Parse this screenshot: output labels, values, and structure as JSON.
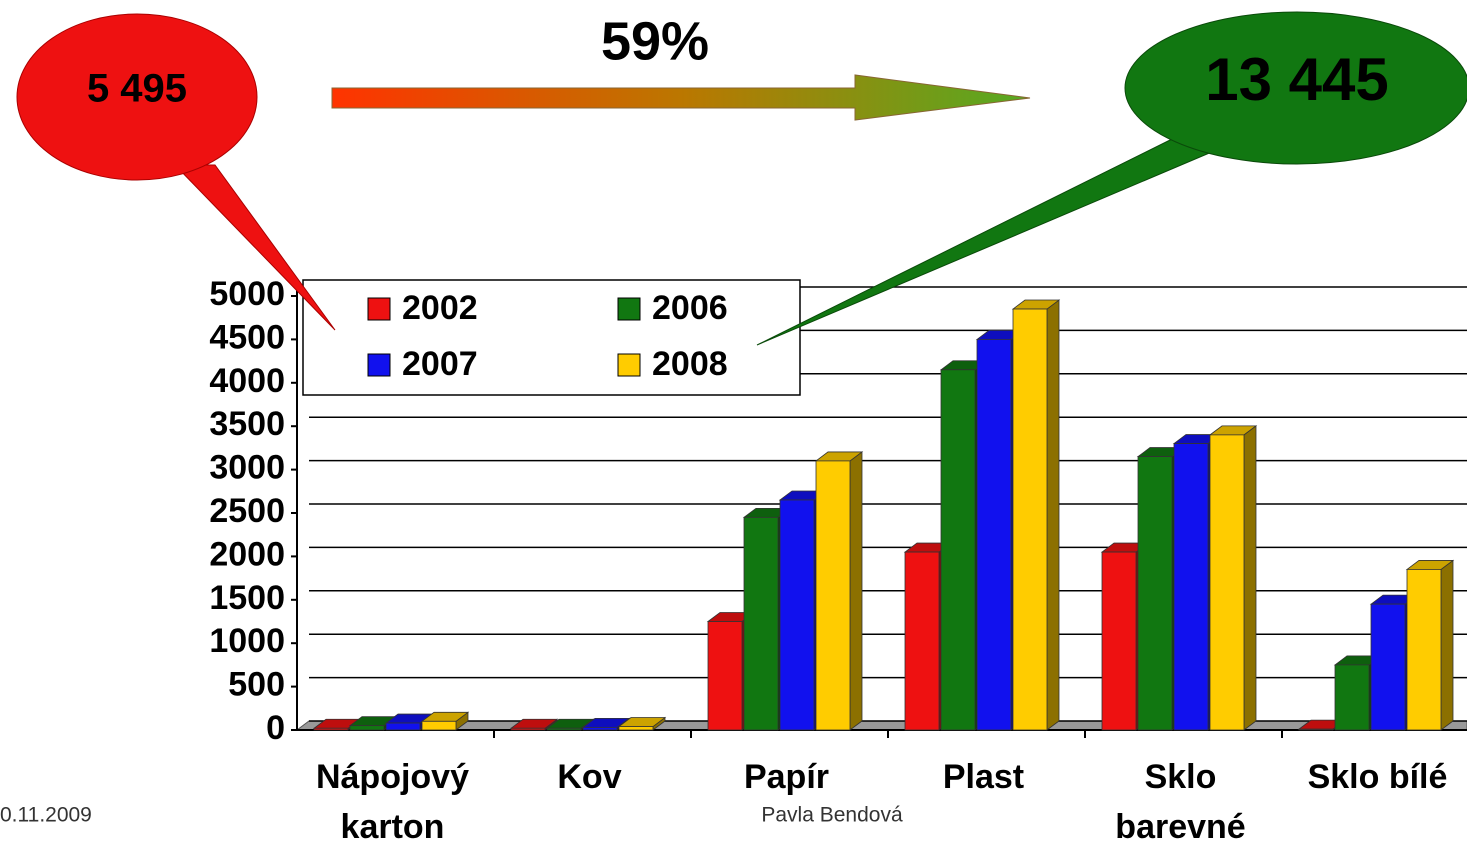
{
  "chart_data": {
    "type": "bar3d",
    "callout_left": "5 495",
    "growth": "59%",
    "callout_right": "13 445",
    "date": "0.11.2009",
    "author": "Pavla Bendová",
    "categories": [
      "Nápojový karton",
      "Kov",
      "Papír",
      "Plast",
      "Sklo barevné",
      "Sklo bílé"
    ],
    "series": [
      {
        "name": "2002",
        "color": "#ee1111",
        "values": [
          20,
          20,
          1250,
          2050,
          2050,
          10
        ]
      },
      {
        "name": "2006",
        "color": "#117711",
        "values": [
          50,
          20,
          2450,
          4150,
          3150,
          750
        ]
      },
      {
        "name": "2007",
        "color": "#1111ee",
        "values": [
          80,
          30,
          2650,
          4500,
          3300,
          1450
        ]
      },
      {
        "name": "2008",
        "color": "#ffcc00",
        "values": [
          100,
          40,
          3100,
          4850,
          3400,
          1850
        ]
      }
    ],
    "ylim": [
      0,
      5000
    ],
    "yticks": [
      0,
      500,
      1000,
      1500,
      2000,
      2500,
      3000,
      3500,
      4000,
      4500,
      5000
    ],
    "grid": true,
    "legend": "top-left"
  }
}
